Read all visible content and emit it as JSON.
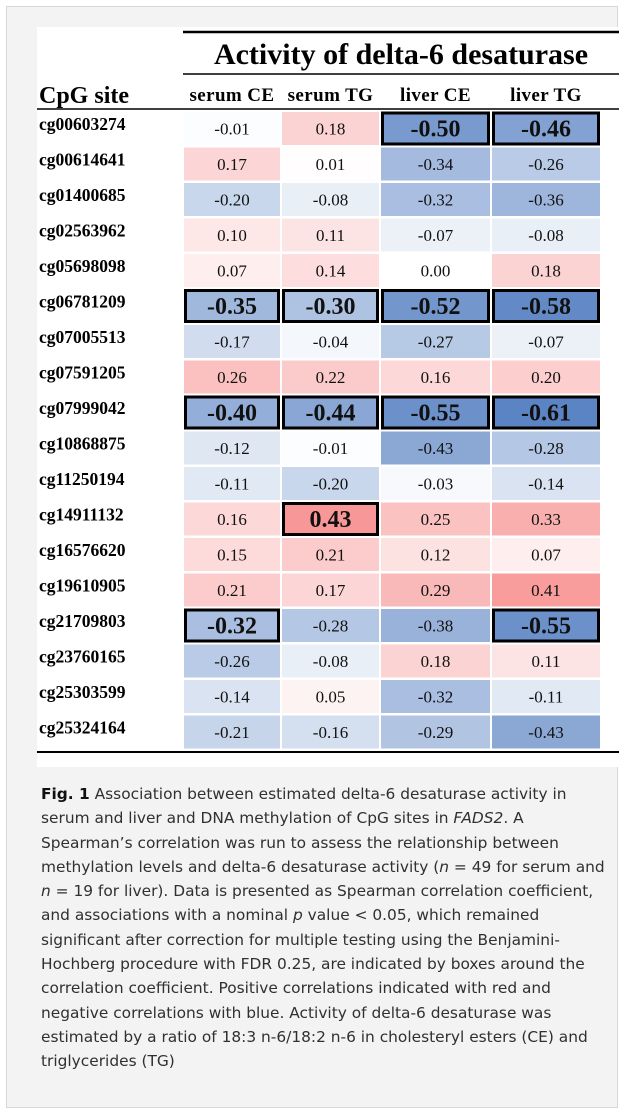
{
  "chart_data": {
    "type": "heatmap",
    "title": "Activity of delta-6 desaturase",
    "row_header": "CpG site",
    "columns": [
      "serum CE",
      "serum TG",
      "liver CE",
      "liver TG"
    ],
    "rows": [
      "cg00603274",
      "cg00614641",
      "cg01400685",
      "cg02563962",
      "cg05698098",
      "cg06781209",
      "cg07005513",
      "cg07591205",
      "cg07999042",
      "cg10868875",
      "cg11250194",
      "cg14911132",
      "cg16576620",
      "cg19610905",
      "cg21709803",
      "cg23760165",
      "cg25303599",
      "cg25324164"
    ],
    "values": [
      [
        -0.01,
        0.18,
        -0.5,
        -0.46
      ],
      [
        0.17,
        0.01,
        -0.34,
        -0.26
      ],
      [
        -0.2,
        -0.08,
        -0.32,
        -0.36
      ],
      [
        0.1,
        0.11,
        -0.07,
        -0.08
      ],
      [
        0.07,
        0.14,
        0.0,
        0.18
      ],
      [
        -0.35,
        -0.3,
        -0.52,
        -0.58
      ],
      [
        -0.17,
        -0.04,
        -0.27,
        -0.07
      ],
      [
        0.26,
        0.22,
        0.16,
        0.2
      ],
      [
        -0.4,
        -0.44,
        -0.55,
        -0.61
      ],
      [
        -0.12,
        -0.01,
        -0.43,
        -0.28
      ],
      [
        -0.11,
        -0.2,
        -0.03,
        -0.14
      ],
      [
        0.16,
        0.43,
        0.25,
        0.33
      ],
      [
        0.15,
        0.21,
        0.12,
        0.07
      ],
      [
        0.21,
        0.17,
        0.29,
        0.41
      ],
      [
        -0.32,
        -0.28,
        -0.38,
        -0.55
      ],
      [
        -0.26,
        -0.08,
        0.18,
        0.11
      ],
      [
        -0.14,
        0.05,
        -0.32,
        -0.11
      ],
      [
        -0.21,
        -0.16,
        -0.29,
        -0.43
      ]
    ],
    "significant": [
      [
        0,
        2
      ],
      [
        0,
        3
      ],
      [
        5,
        0
      ],
      [
        5,
        1
      ],
      [
        5,
        2
      ],
      [
        5,
        3
      ],
      [
        8,
        0
      ],
      [
        8,
        1
      ],
      [
        8,
        2
      ],
      [
        8,
        3
      ],
      [
        11,
        1
      ],
      [
        14,
        0
      ],
      [
        14,
        3
      ]
    ],
    "color_positive": "#f56b6b",
    "color_negative": "#5b84c4",
    "color_zero": "#ffffff"
  },
  "caption": {
    "label": "Fig. 1",
    "text_1": " Association between estimated delta-6 desaturase activity in serum and liver and DNA methylation of CpG sites in ",
    "gene": "FADS2",
    "text_2": ". A Spearman’s correlation was run to assess the relationship between methylation levels and delta-6 desaturase activity (",
    "n_var_1": "n",
    "text_3": " = 49 for serum and ",
    "n_var_2": "n",
    "text_4": " = 19 for liver). Data is presented as Spearman correlation coefficient, and associations with a nominal ",
    "p_var": "p",
    "text_5": " value < 0.05, which remained significant after correction for multiple testing using the Benjamini-Hochberg procedure with FDR 0.25, are indicated by boxes around the correlation coefficient. Positive correlations indicated with red and negative correlations with blue. Activity of delta-6 desaturase was estimated by a ratio of 18:3 n-6/18:2 n-6 in cholesteryl esters (CE) and triglycerides (TG)"
  }
}
